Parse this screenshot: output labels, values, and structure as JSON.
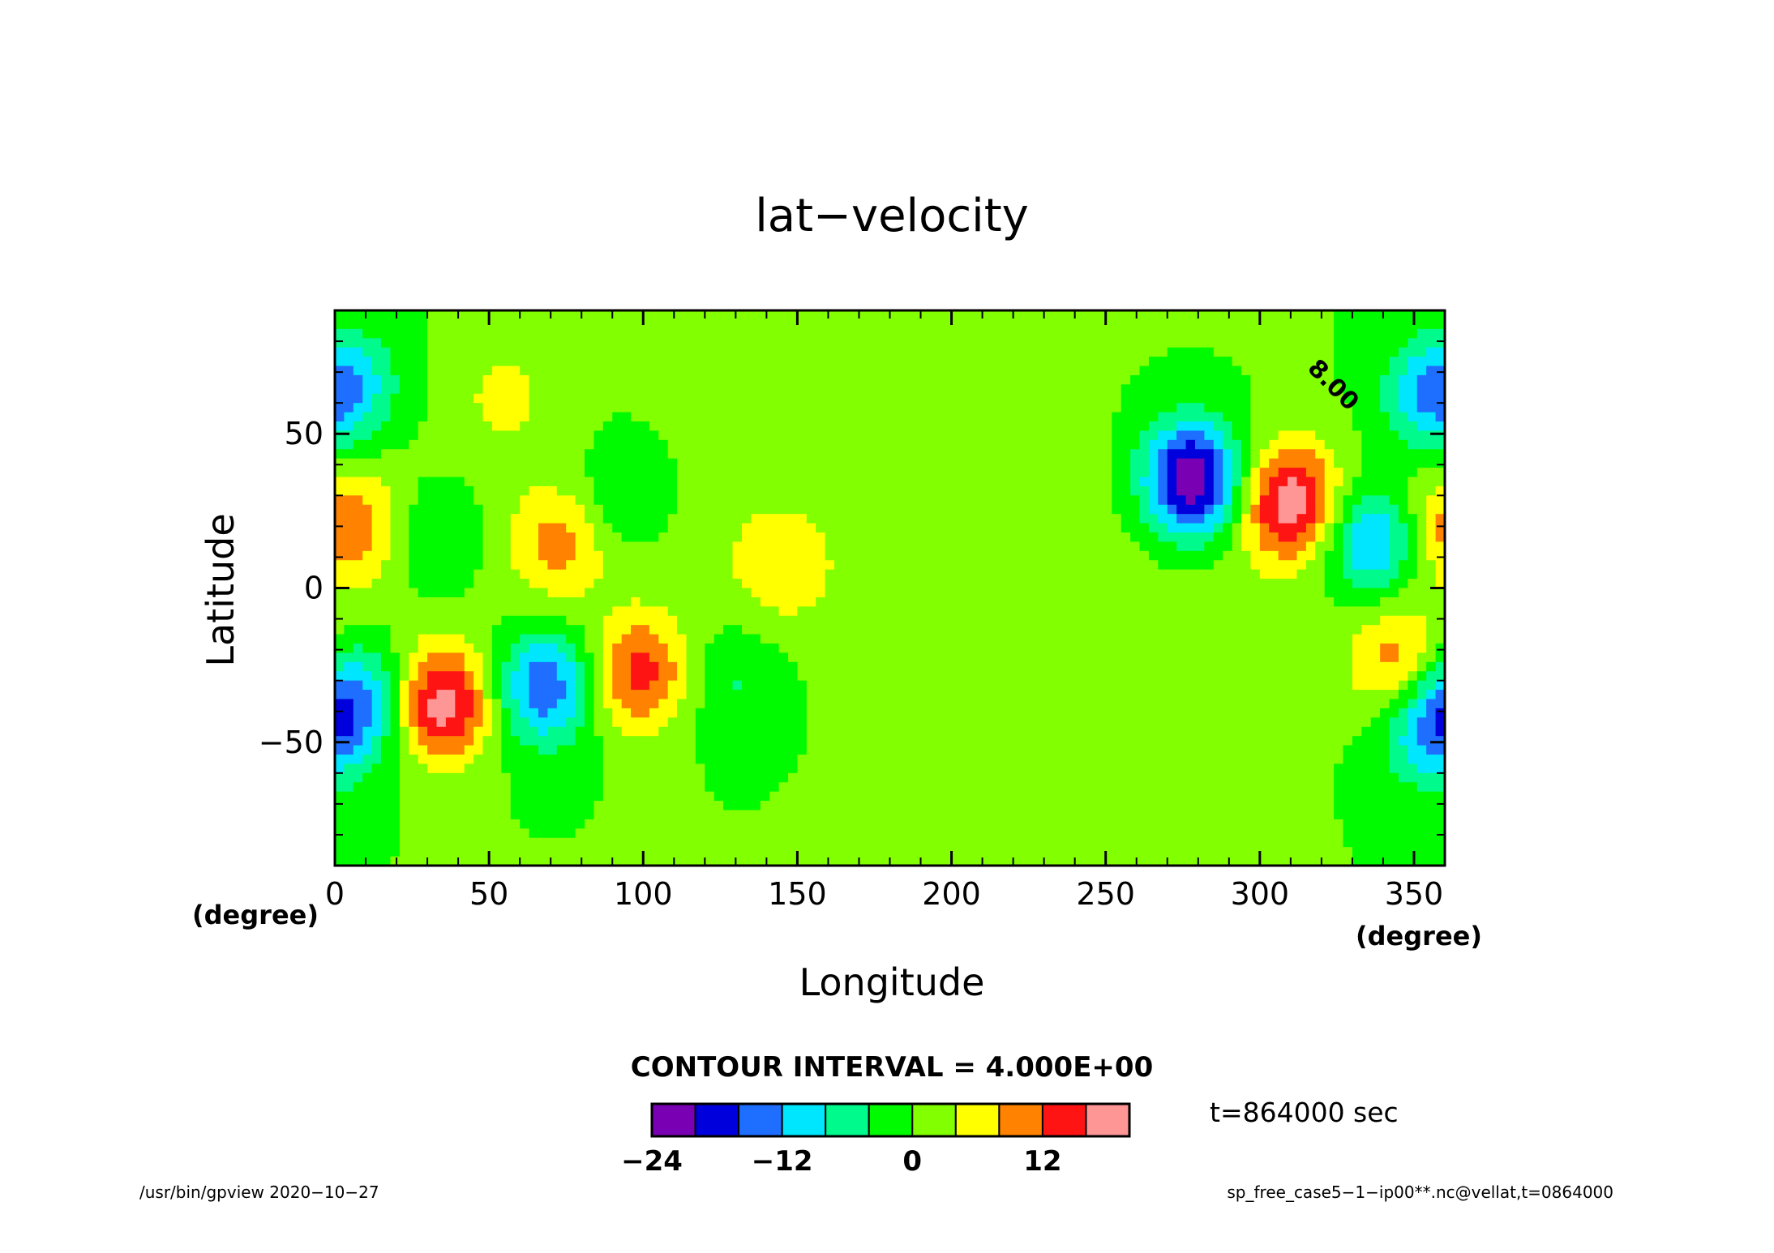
{
  "chart_data": {
    "type": "heatmap",
    "title": "lat−velocity",
    "xlabel": "Longitude",
    "ylabel": "Latitude",
    "x_unit": "(degree)",
    "y_unit": "(degree)",
    "xlim": [
      0,
      360
    ],
    "ylim": [
      -90,
      90
    ],
    "x_ticks": [
      0,
      50,
      100,
      150,
      200,
      250,
      300,
      350
    ],
    "y_ticks": [
      -50,
      0,
      50
    ],
    "x_tick_labels": [
      "0",
      "50",
      "100",
      "150",
      "200",
      "250",
      "300",
      "350"
    ],
    "y_tick_labels": [
      "−50",
      "0",
      "50"
    ],
    "contour_interval_text": "CONTOUR INTERVAL = 4.000E+00",
    "contour_interval": 4,
    "contour_label": "8.00",
    "levels": [
      -24,
      -20,
      -16,
      -12,
      -8,
      -4,
      0,
      4,
      8,
      12,
      16,
      20
    ],
    "colorbar": {
      "colors": [
        "#7a00b4",
        "#0000dc",
        "#1e6eff",
        "#00e6ff",
        "#00fa8c",
        "#00fa00",
        "#82ff00",
        "#ffff00",
        "#ff8200",
        "#ff1414",
        "#ff9696"
      ],
      "tick_values": [
        -24,
        -12,
        0,
        12
      ],
      "tick_labels": [
        "−24",
        "−12",
        "0",
        "12"
      ]
    },
    "features": [
      {
        "kind": "min",
        "lon": 278,
        "lat": 35,
        "amplitude": -25
      },
      {
        "kind": "max",
        "lon": 310,
        "lat": 28,
        "amplitude": 18
      },
      {
        "kind": "min",
        "lon": 336,
        "lat": 15,
        "amplitude": -14
      },
      {
        "kind": "max",
        "lon": 345,
        "lat": -25,
        "amplitude": 10
      },
      {
        "kind": "min",
        "lon": 356,
        "lat": -45,
        "amplitude": -14
      },
      {
        "kind": "min",
        "lon": 354,
        "lat": 62,
        "amplitude": -9
      },
      {
        "kind": "min",
        "lon": 5,
        "lat": 65,
        "amplitude": -9
      },
      {
        "kind": "max",
        "lon": 5,
        "lat": 20,
        "amplitude": 10
      },
      {
        "kind": "min",
        "lon": 8,
        "lat": -35,
        "amplitude": -11
      },
      {
        "kind": "max",
        "lon": 35,
        "lat": -38,
        "amplitude": 18
      },
      {
        "kind": "min",
        "lon": 68,
        "lat": -32,
        "amplitude": -16
      },
      {
        "kind": "max",
        "lon": 99,
        "lat": -28,
        "amplitude": 13
      },
      {
        "kind": "min",
        "lon": 130,
        "lat": -30,
        "amplitude": -5
      },
      {
        "kind": "min",
        "lon": 33,
        "lat": 15,
        "amplitude": -6
      },
      {
        "kind": "max",
        "lon": 73,
        "lat": 15,
        "amplitude": 8
      },
      {
        "kind": "min",
        "lon": 93,
        "lat": 28,
        "amplitude": -5
      },
      {
        "kind": "max",
        "lon": 145,
        "lat": 8,
        "amplitude": 6
      },
      {
        "kind": "max",
        "lon": 55,
        "lat": 62,
        "amplitude": 5
      }
    ]
  },
  "annotations": {
    "time": "t=864000 sec",
    "footer_left": "/usr/bin/gpview   2020−10−27",
    "footer_right": "sp_free_case5−1−ip00**.nc@vellat,t=0864000"
  }
}
